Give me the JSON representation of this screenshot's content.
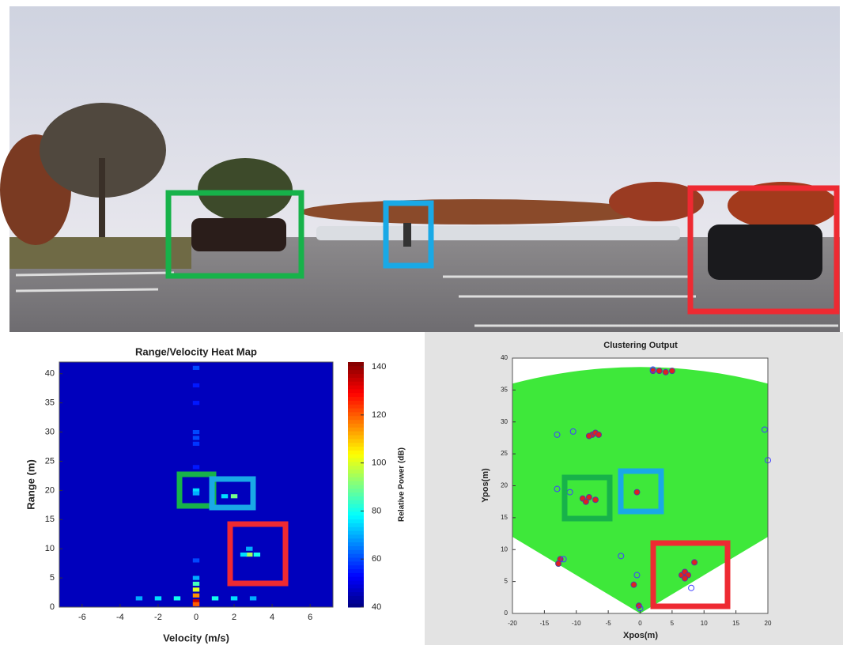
{
  "chart_data": [
    {
      "type": "heatmap",
      "title": "Range/Velocity Heat Map",
      "x_label": "Velocity (m/s)",
      "y_label": "Range (m)",
      "xlim": [
        -7.2,
        7.2
      ],
      "xticks": [
        -6,
        -4,
        -2,
        0,
        2,
        4,
        6
      ],
      "ylim": [
        0,
        42
      ],
      "yticks": [
        0,
        5,
        10,
        15,
        20,
        25,
        30,
        35,
        40
      ],
      "colorbar_label": "Relative Power (dB)",
      "clim": [
        40,
        142
      ],
      "cticks": [
        40,
        60,
        80,
        100,
        120,
        140
      ],
      "colormap": "jet",
      "x": [
        0,
        0,
        0,
        0,
        0,
        0,
        0,
        0,
        0,
        1.5,
        2,
        2.8,
        2.8,
        3.2,
        2.5,
        0,
        0,
        0,
        0,
        0,
        0,
        0,
        -3,
        -2,
        -1,
        1,
        2,
        3
      ],
      "y": [
        41,
        38,
        35,
        30,
        29,
        28,
        24,
        20,
        19.5,
        19,
        19,
        10,
        9,
        9,
        9,
        8,
        5,
        4,
        3,
        2,
        1,
        0.5,
        1.5,
        1.5,
        1.5,
        1.5,
        1.5,
        1.5
      ],
      "values": [
        60,
        55,
        55,
        60,
        60,
        58,
        55,
        75,
        70,
        75,
        90,
        70,
        95,
        80,
        75,
        60,
        70,
        85,
        100,
        115,
        135,
        120,
        70,
        75,
        80,
        80,
        75,
        70
      ]
    },
    {
      "type": "scatter",
      "title": "Clustering Output",
      "x_label": "Xpos(m)",
      "y_label": "Ypos(m)",
      "xlim": [
        -20,
        20
      ],
      "xticks": [
        -20,
        -15,
        -10,
        -5,
        0,
        5,
        10,
        15,
        20
      ],
      "ylim": [
        0,
        40
      ],
      "yticks": [
        0,
        5,
        10,
        15,
        20,
        25,
        30,
        35,
        40
      ],
      "series": [
        {
          "color": "#e02020",
          "filled": true,
          "x": [
            -7.5,
            -7,
            -6.5,
            -8,
            -9,
            -8,
            -7,
            -8.5,
            -0.5,
            6.5,
            7,
            7.5,
            7,
            8.5,
            -1,
            -0.2,
            -12.5,
            -12.8,
            2,
            3,
            4,
            5
          ],
          "values": [
            28,
            28.3,
            28,
            27.8,
            18,
            18.2,
            17.8,
            17.5,
            19,
            6,
            6.5,
            6,
            5.5,
            8,
            4.5,
            1.2,
            8.5,
            7.8,
            38,
            38,
            37.8,
            38
          ]
        },
        {
          "color": "#4040ff",
          "filled": false,
          "x": [
            -11,
            -13,
            -10.5,
            -13,
            -3,
            -0.5,
            -12,
            0,
            20,
            8,
            19.5,
            2
          ],
          "values": [
            19,
            19.5,
            28.5,
            28,
            9,
            6,
            8.5,
            0.8,
            24,
            4,
            28.8,
            38.2
          ]
        }
      ]
    }
  ]
}
